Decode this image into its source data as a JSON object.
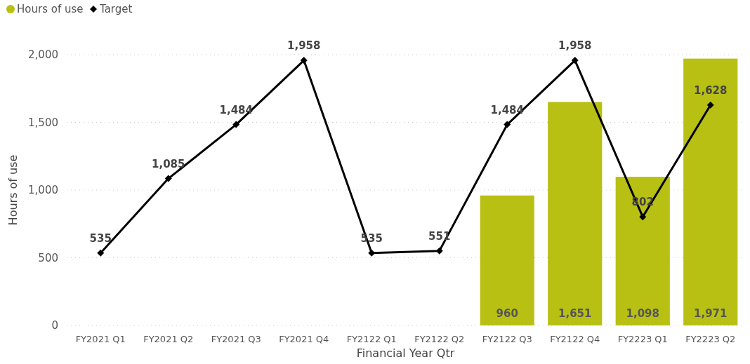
{
  "chart_data": {
    "type": "bar",
    "xlabel": "Financial Year Qtr",
    "ylabel": "Hours of use",
    "categories": [
      "FY2021 Q1",
      "FY2021 Q2",
      "FY2021 Q3",
      "FY2021 Q4",
      "FY2122 Q1",
      "FY2122 Q2",
      "FY2122 Q3",
      "FY2122 Q4",
      "FY2223 Q1",
      "FY2223 Q2"
    ],
    "series": [
      {
        "name": "Hours of use",
        "color": "#b8c014",
        "values": [
          null,
          null,
          null,
          null,
          null,
          null,
          960,
          1651,
          1098,
          1971
        ],
        "value_labels": [
          null,
          null,
          null,
          null,
          null,
          null,
          "960",
          "1,651",
          "1,098",
          "1,971"
        ]
      },
      {
        "name": "Target",
        "type": "line",
        "color": "#000000",
        "marker": "diamond",
        "values": [
          535,
          1085,
          1484,
          1958,
          535,
          551,
          1484,
          1958,
          802,
          1628
        ],
        "value_labels": [
          "535",
          "1,085",
          "1,484",
          "1,958",
          "535",
          "551",
          "1,484",
          "1,958",
          "802",
          "1,628"
        ]
      }
    ],
    "ylim": [
      0,
      2000
    ],
    "yticks": [
      {
        "value": 0,
        "label": "0"
      },
      {
        "value": 500,
        "label": "500"
      },
      {
        "value": 1000,
        "label": "1,000"
      },
      {
        "value": 1500,
        "label": "1,500"
      },
      {
        "value": 2000,
        "label": "2,000"
      }
    ],
    "grid": "y",
    "legend": "top left"
  }
}
